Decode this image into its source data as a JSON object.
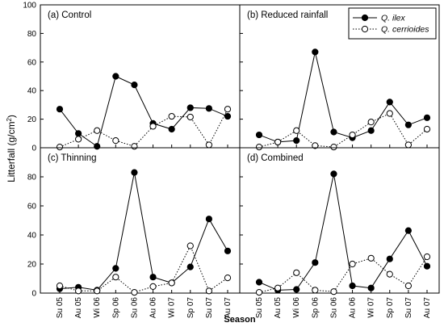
{
  "chart_data": {
    "type": "line",
    "ylabel_main": "Litterfall (g/cm",
    "ylabel_sup": "2",
    "ylabel_close": ")",
    "xlabel": "Season",
    "ylim": [
      0,
      100
    ],
    "yticks": [
      "0",
      "20",
      "40",
      "60",
      "80",
      "100"
    ],
    "categories": [
      "Su 05",
      "Au 05",
      "Wi 06",
      "Sp 06",
      "Su 06",
      "Au 06",
      "Wi 07",
      "Sp 07",
      "Su 07",
      "Au 07"
    ],
    "legend": {
      "placement": "top-right",
      "series": [
        "Q. ilex",
        "Q. cerrioides"
      ]
    },
    "panels": [
      {
        "label": "(a) Control",
        "series": [
          {
            "name": "Q. ilex",
            "marker": "filled",
            "line": "solid",
            "values": [
              27,
              10,
              1,
              50,
              44,
              17,
              13,
              28,
              27.5,
              22
            ]
          },
          {
            "name": "Q. cerrioides",
            "marker": "open",
            "line": "dotted",
            "values": [
              0.5,
              6,
              12,
              5,
              1,
              15,
              22,
              21.5,
              2,
              27
            ]
          }
        ]
      },
      {
        "label": "(b) Reduced rainfall",
        "series": [
          {
            "name": "Q. ilex",
            "marker": "filled",
            "line": "solid",
            "values": [
              9,
              4,
              5,
              67,
              11,
              7,
              12,
              32,
              16,
              21
            ]
          },
          {
            "name": "Q. cerrioides",
            "marker": "open",
            "line": "dotted",
            "values": [
              0.5,
              4,
              12,
              1.5,
              0.5,
              9,
              18,
              24,
              2,
              13
            ]
          }
        ]
      },
      {
        "label": "(c) Thinning",
        "series": [
          {
            "name": "Q. ilex",
            "marker": "filled",
            "line": "solid",
            "values": [
              3,
              4,
              2,
              17,
              83,
              11,
              7,
              18,
              51,
              29
            ]
          },
          {
            "name": "Q. cerrioides",
            "marker": "open",
            "line": "dotted",
            "values": [
              5,
              1.5,
              1.5,
              11,
              0.5,
              4.5,
              7,
              32.5,
              1.5,
              10.5
            ]
          }
        ]
      },
      {
        "label": "(d) Combined",
        "series": [
          {
            "name": "Q. ilex",
            "marker": "filled",
            "line": "solid",
            "values": [
              7.5,
              2,
              2.5,
              21,
              82,
              5,
              3.5,
              23.5,
              43,
              18.5
            ]
          },
          {
            "name": "Q. cerrioides",
            "marker": "open",
            "line": "dotted",
            "values": [
              0.5,
              3.5,
              14,
              2,
              1,
              20,
              24,
              13,
              5,
              25
            ]
          }
        ]
      }
    ]
  }
}
